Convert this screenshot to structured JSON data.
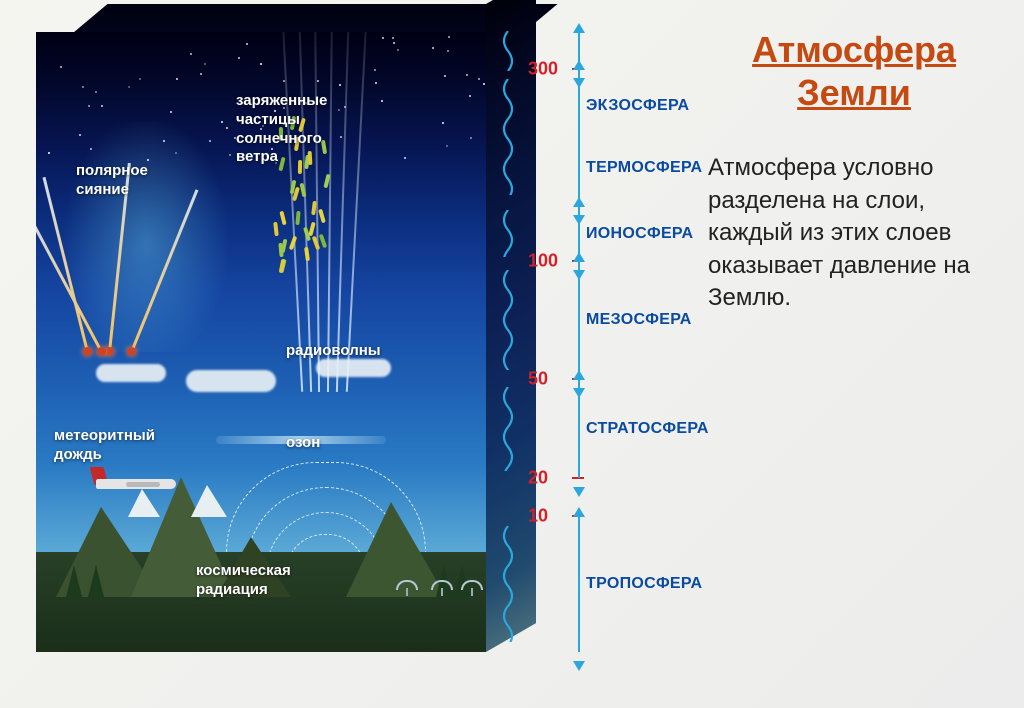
{
  "title_line1": "Атмосфера",
  "title_line2": "Земли",
  "paragraph": "Атмосфера условно разделена на слои, каждый из этих слоев оказывает давление на Землю.",
  "labels": {
    "aurora": "полярное\nсияние",
    "solar_wind": "заряженные\nчастицы\nсолнечного\nветра",
    "radiowaves": "радиоволны",
    "meteor": "метеоритный\nдождь",
    "ozone": "озон",
    "cosmic": "космическая\nрадиация"
  },
  "scale": {
    "ticks": [
      {
        "value": "300",
        "pct": 6
      },
      {
        "value": "100",
        "pct": 37
      },
      {
        "value": "50",
        "pct": 56
      },
      {
        "value": "20",
        "pct": 72
      },
      {
        "value": "10",
        "pct": 78
      }
    ],
    "layers": [
      {
        "name": "ЭКЗОСФЕРА",
        "top_pct": 0,
        "bot_pct": 6,
        "label_pct": 12
      },
      {
        "name": "ТЕРМОСФЕРА",
        "top_pct": 6,
        "bot_pct": 28,
        "label_pct": 22
      },
      {
        "name": "ИОНОСФЕРА",
        "top_pct": 28,
        "bot_pct": 37,
        "label_pct": 32.5
      },
      {
        "name": "МЕЗОСФЕРА",
        "top_pct": 37,
        "bot_pct": 56,
        "label_pct": 46.5
      },
      {
        "name": "СТРАТОСФЕРА",
        "top_pct": 56,
        "bot_pct": 72,
        "label_pct": 64
      },
      {
        "name": "ТРОПОСФЕРА",
        "top_pct": 78,
        "bot_pct": 100,
        "label_pct": 89
      }
    ]
  },
  "colors": {
    "title": "#c44a12",
    "tick": "#d12028",
    "layer_name": "#0a4aa0",
    "wave": "#2aa7dd"
  },
  "cosmic_beams_x": [
    255,
    268,
    280,
    293,
    306,
    320
  ],
  "meteors": [
    {
      "bx": 50,
      "by": 300,
      "len": 180,
      "rot": -14
    },
    {
      "bx": 72,
      "by": 300,
      "len": 190,
      "rot": 6
    },
    {
      "bx": 94,
      "by": 300,
      "len": 175,
      "rot": 22
    },
    {
      "bx": 64,
      "by": 300,
      "len": 160,
      "rot": -28
    }
  ],
  "solar_colors": [
    "#e6d23e",
    "#9ac84a",
    "#e2c736",
    "#7fb73c",
    "#e0c838",
    "#9cce52"
  ]
}
